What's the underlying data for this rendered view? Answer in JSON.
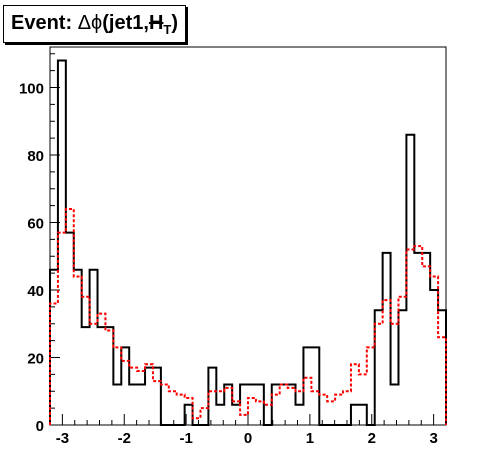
{
  "title": {
    "prefix": "Event: ",
    "delta": "Δ",
    "phi": "ϕ",
    "args": "(jet1,",
    "ht_h": "H",
    "ht_sub": "T",
    "close": ")"
  },
  "chart_data": {
    "type": "step",
    "title": "Event: Δϕ(jet1,H̸T)",
    "xlabel": "",
    "ylabel": "",
    "xlim": [
      -3.2,
      3.2
    ],
    "ylim": [
      0,
      112
    ],
    "xticks": [
      -3,
      -2,
      -1,
      0,
      1,
      2,
      3
    ],
    "xtick_labels": [
      "-3",
      "-2",
      "-1",
      "0",
      "1",
      "2",
      "3"
    ],
    "yticks": [
      0,
      20,
      40,
      60,
      80,
      100
    ],
    "ytick_labels": [
      "0",
      "20",
      "40",
      "60",
      "80",
      "100"
    ],
    "bins": 50,
    "grid": false,
    "series": [
      {
        "color": "#000000",
        "style": "solid",
        "values": [
          46,
          108,
          57,
          46,
          29,
          46,
          29,
          29,
          12,
          23,
          12,
          12,
          17,
          17,
          0,
          0,
          0,
          6,
          0,
          0,
          17,
          6,
          12,
          6,
          12,
          12,
          12,
          0,
          12,
          12,
          12,
          6,
          23,
          23,
          0,
          0,
          0,
          0,
          6,
          6,
          0,
          34,
          51,
          12,
          34,
          86,
          51,
          51,
          40,
          34
        ]
      },
      {
        "color": "#ff0000",
        "style": "dashed",
        "values": [
          36,
          57,
          64,
          44,
          38,
          30,
          33,
          28,
          23,
          19,
          17,
          16,
          18,
          13,
          12,
          10,
          9,
          8,
          2,
          5,
          10,
          10,
          11,
          7,
          3,
          8,
          7,
          6,
          9,
          12,
          11,
          10,
          14,
          10,
          9,
          7,
          9,
          10,
          18,
          15,
          23,
          30,
          37,
          30,
          38,
          52,
          53,
          47,
          44,
          26
        ]
      }
    ]
  }
}
